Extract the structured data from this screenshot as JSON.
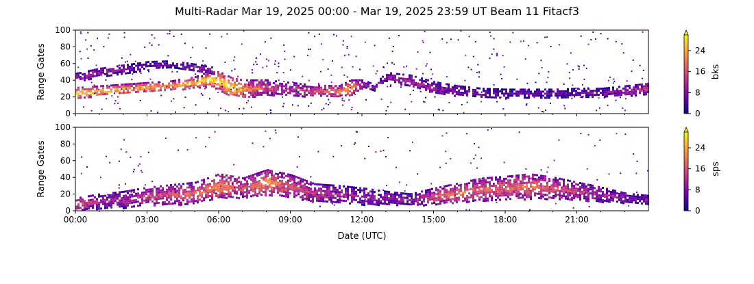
{
  "title": "Multi-Radar Mar 19, 2025 00:00 - Mar 19, 2025 23:59 UT Beam 11 Fitacf3",
  "colors": {
    "colormap": [
      "#0d0887",
      "#6a00a8",
      "#b12a90",
      "#e16462",
      "#fca636",
      "#f0f921"
    ]
  },
  "chart_data": [
    {
      "type": "heatmap",
      "panel": "top",
      "xlabel": "",
      "ylabel": "Range Gates",
      "xlim": [
        0,
        24
      ],
      "ylim": [
        0,
        100
      ],
      "x_ticks": [
        0,
        3,
        6,
        9,
        12,
        15,
        18,
        21
      ],
      "x_tick_labels": [
        "",
        "",
        "",
        "",
        "",
        "",
        "",
        ""
      ],
      "y_ticks": [
        0,
        20,
        40,
        60,
        80,
        100
      ],
      "y_tick_labels": [
        "0",
        "20",
        "40",
        "60",
        "80",
        "100"
      ],
      "colorbar": {
        "label": "bks",
        "range": [
          0,
          30
        ],
        "ticks": [
          0,
          8,
          16,
          24
        ],
        "tick_labels": [
          "0",
          "8",
          "16",
          "24"
        ],
        "extend": "max"
      },
      "bands": [
        {
          "name": "main-echo-band",
          "x": [
            0,
            1,
            2,
            3,
            4,
            5,
            5.5,
            6,
            6.5,
            7,
            8,
            9,
            10,
            11,
            11.5,
            12,
            12.5,
            13,
            14,
            15,
            16,
            17,
            18,
            19,
            20,
            21,
            22,
            23,
            23.99
          ],
          "center": [
            25,
            28,
            30,
            32,
            34,
            38,
            42,
            40,
            32,
            30,
            32,
            30,
            28,
            27,
            32,
            36,
            32,
            45,
            40,
            32,
            28,
            26,
            25,
            25,
            25,
            26,
            26,
            28,
            30
          ],
          "width": [
            14,
            12,
            12,
            12,
            12,
            14,
            18,
            22,
            24,
            22,
            18,
            16,
            14,
            14,
            18,
            10,
            8,
            10,
            14,
            14,
            12,
            10,
            10,
            10,
            10,
            10,
            10,
            12,
            14
          ],
          "intensity": [
            0.95,
            0.9,
            0.85,
            0.8,
            0.75,
            0.85,
            0.9,
            0.95,
            1.0,
            0.8,
            0.5,
            0.45,
            0.55,
            0.7,
            0.85,
            0.4,
            0.25,
            0.3,
            0.35,
            0.3,
            0.25,
            0.2,
            0.2,
            0.2,
            0.2,
            0.2,
            0.25,
            0.35,
            0.5
          ]
        },
        {
          "name": "upper-echo-band",
          "x": [
            0,
            1,
            2,
            3,
            4,
            5,
            5.8
          ],
          "center": [
            44,
            50,
            54,
            58,
            60,
            56,
            52
          ],
          "width": [
            10,
            10,
            10,
            10,
            8,
            8,
            8
          ],
          "intensity": [
            0.35,
            0.3,
            0.25,
            0.2,
            0.15,
            0.3,
            0.4
          ]
        }
      ]
    },
    {
      "type": "heatmap",
      "panel": "bottom",
      "xlabel": "Date (UTC)",
      "ylabel": "Range Gates",
      "xlim": [
        0,
        24
      ],
      "ylim": [
        0,
        100
      ],
      "x_ticks": [
        0,
        3,
        6,
        9,
        12,
        15,
        18,
        21
      ],
      "x_tick_labels": [
        "00:00",
        "03:00",
        "06:00",
        "09:00",
        "12:00",
        "15:00",
        "18:00",
        "21:00"
      ],
      "y_ticks": [
        0,
        20,
        40,
        60,
        80,
        100
      ],
      "y_tick_labels": [
        "0",
        "20",
        "40",
        "60",
        "80",
        "100"
      ],
      "colorbar": {
        "label": "sps",
        "range": [
          0,
          30
        ],
        "ticks": [
          0,
          8,
          16,
          24
        ],
        "tick_labels": [
          "0",
          "8",
          "16",
          "24"
        ],
        "extend": "max"
      },
      "bands": [
        {
          "name": "ground-scatter-band",
          "x": [
            0,
            1,
            2,
            3,
            4,
            5,
            6,
            7,
            8,
            9,
            10,
            11,
            12,
            13,
            14,
            15,
            16,
            17,
            18,
            19,
            20,
            21,
            22,
            23,
            23.99
          ],
          "center": [
            8,
            12,
            14,
            18,
            20,
            22,
            30,
            28,
            35,
            30,
            22,
            20,
            18,
            16,
            14,
            18,
            22,
            26,
            28,
            30,
            28,
            24,
            20,
            16,
            14
          ],
          "width": [
            16,
            18,
            20,
            22,
            24,
            26,
            30,
            24,
            30,
            28,
            22,
            22,
            20,
            16,
            14,
            20,
            24,
            28,
            28,
            30,
            26,
            22,
            18,
            12,
            10
          ],
          "intensity": [
            0.55,
            0.35,
            0.35,
            0.5,
            0.55,
            0.6,
            0.7,
            0.55,
            0.75,
            0.55,
            0.45,
            0.35,
            0.3,
            0.3,
            0.3,
            0.55,
            0.65,
            0.6,
            0.6,
            0.65,
            0.55,
            0.45,
            0.35,
            0.25,
            0.25
          ]
        }
      ]
    }
  ]
}
